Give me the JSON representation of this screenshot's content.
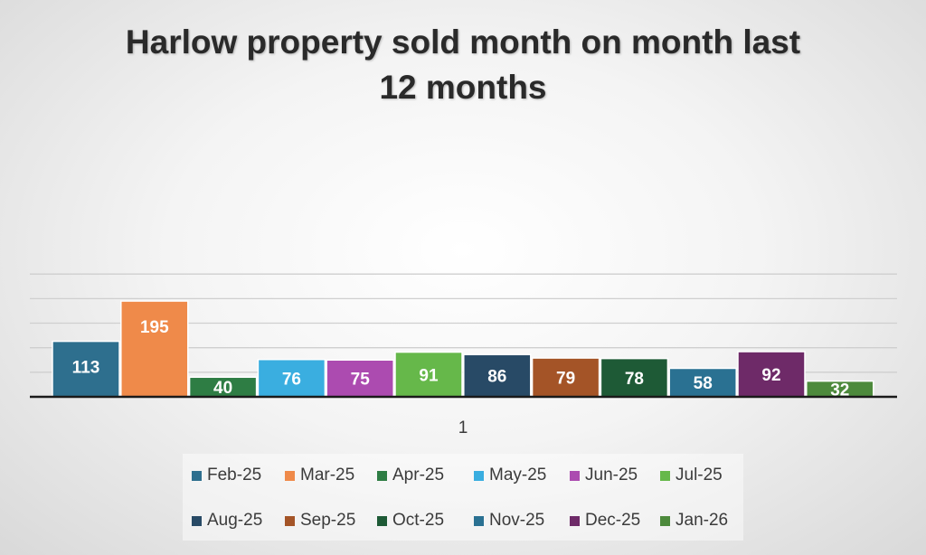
{
  "chart_data": {
    "type": "bar",
    "title": [
      "Harlow property sold month on month last",
      "12 months"
    ],
    "categories": [
      "1"
    ],
    "series": [
      {
        "name": "Feb-25",
        "values": [
          113
        ],
        "color": "#2e6f8e"
      },
      {
        "name": "Mar-25",
        "values": [
          195
        ],
        "color": "#ef8a4a"
      },
      {
        "name": "Apr-25",
        "values": [
          40
        ],
        "color": "#2e7d44"
      },
      {
        "name": "May-25",
        "values": [
          76
        ],
        "color": "#3aaee0"
      },
      {
        "name": "Jun-25",
        "values": [
          75
        ],
        "color": "#ac4bb0"
      },
      {
        "name": "Jul-25",
        "values": [
          91
        ],
        "color": "#66b84a"
      },
      {
        "name": "Aug-25",
        "values": [
          86
        ],
        "color": "#284a66"
      },
      {
        "name": "Sep-25",
        "values": [
          79
        ],
        "color": "#a45427"
      },
      {
        "name": "Oct-25",
        "values": [
          78
        ],
        "color": "#1e5a36"
      },
      {
        "name": "Nov-25",
        "values": [
          58
        ],
        "color": "#2a7192"
      },
      {
        "name": "Dec-25",
        "values": [
          92
        ],
        "color": "#6e2a68"
      },
      {
        "name": "Jan-26",
        "values": [
          32
        ],
        "color": "#4d8a3c"
      }
    ],
    "ylim": [
      0,
      250
    ],
    "y_gridline_step": 50,
    "grid": true,
    "show_y_tick_labels": false,
    "data_labels": true,
    "legend": "bottom"
  }
}
